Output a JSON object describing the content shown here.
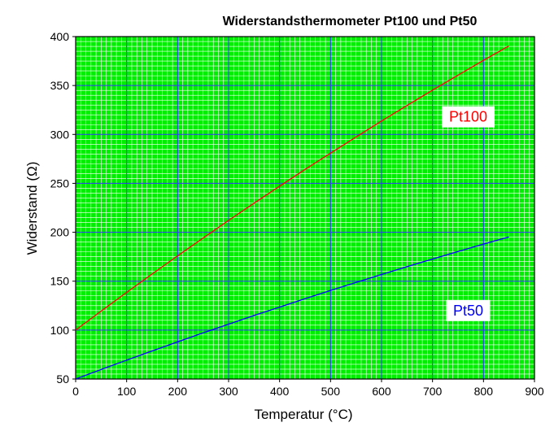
{
  "chart_data": {
    "type": "line",
    "title": "Widerstandsthermometer Pt100 und Pt50",
    "xlabel": "Temperatur (°C)",
    "ylabel": "Widerstand (Ω)",
    "xlim": [
      0,
      900
    ],
    "ylim": [
      50,
      400
    ],
    "xticks": [
      "0",
      "100",
      "200",
      "300",
      "400",
      "500",
      "600",
      "700",
      "800",
      "900"
    ],
    "yticks": [
      "50",
      "100",
      "150",
      "200",
      "250",
      "300",
      "350",
      "400"
    ],
    "grid": {
      "major": true,
      "minor": true,
      "background": "#00ee00",
      "minor_color": "#ffffff",
      "major_color": "#3333ff"
    },
    "series": [
      {
        "name": "Pt100",
        "color": "#ff0000",
        "label_color": "#ff0000",
        "x": [
          0,
          50,
          100,
          150,
          200,
          250,
          300,
          350,
          400,
          450,
          500,
          550,
          600,
          650,
          700,
          750,
          800,
          850
        ],
        "values": [
          100,
          119.4,
          138.5,
          157.3,
          175.9,
          194.1,
          212.1,
          229.7,
          247.1,
          264.2,
          280.9,
          297.4,
          313.7,
          329.6,
          345.3,
          360.6,
          375.7,
          390.5
        ]
      },
      {
        "name": "Pt50",
        "color": "#0000ff",
        "label_color": "#0000ff",
        "x": [
          0,
          50,
          100,
          150,
          200,
          250,
          300,
          350,
          400,
          450,
          500,
          550,
          600,
          650,
          700,
          750,
          800,
          850
        ],
        "values": [
          50,
          59.7,
          69.3,
          78.7,
          87.9,
          97.1,
          106,
          114.9,
          123.5,
          132.1,
          140.5,
          148.7,
          156.8,
          164.8,
          172.6,
          180.3,
          187.9,
          195.2
        ]
      }
    ]
  }
}
